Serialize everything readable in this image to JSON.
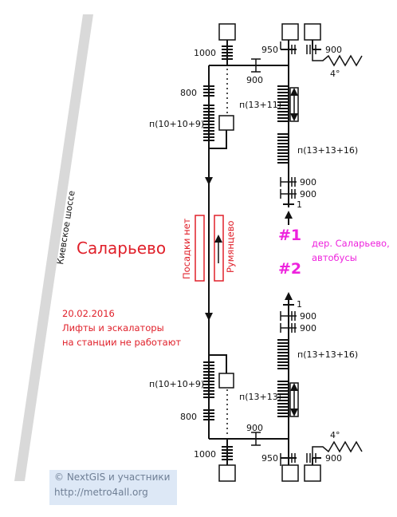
{
  "road": {
    "name": "Киевское шоссе"
  },
  "station": {
    "name": "Саларьево"
  },
  "notice": {
    "date": "20.02.2016",
    "line1": "Лифты и эскалаторы",
    "line2": "на станции не работают"
  },
  "platform": {
    "no_boarding": "Посадки нет",
    "direction": "Румянцево"
  },
  "exits": {
    "exit1": {
      "label": "#1",
      "description_line1": "дер. Саларьево,",
      "description_line2": "автобусы"
    },
    "exit2": {
      "label": "#2"
    }
  },
  "top": {
    "left_stair_width": "1000",
    "upper_stair_width": "800",
    "left_steps": "п(10+10+9)",
    "gate_width": "900",
    "right_stair_width": "950",
    "right_ramp_width": "900",
    "slope": "4°",
    "right_steps_1": "п(13+11)",
    "right_steps_2": "п(13+13+16)",
    "door_1": "900",
    "door_2": "900",
    "step_1": "1"
  },
  "bottom": {
    "left_stair_width": "1000",
    "upper_stair_width": "800",
    "left_steps": "п(10+10+9)",
    "gate_width": "900",
    "right_stair_width": "950",
    "right_ramp_width": "900",
    "slope": "4°",
    "right_steps_1": "п(13+13)",
    "right_steps_2": "п(13+13+16)",
    "door_1": "900",
    "door_2": "900",
    "step_1": "1"
  },
  "credits": {
    "line1": "© NextGIS и участники",
    "line2": "http://metro4all.org"
  },
  "colors": {
    "accent_red": "#e0202a",
    "exit_magenta": "#ee22dd",
    "credit_bg": "#dde8f6"
  }
}
